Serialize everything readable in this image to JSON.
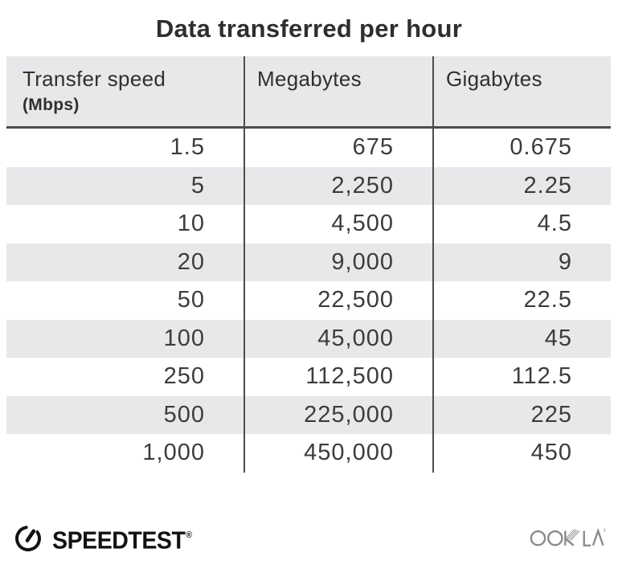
{
  "title": "Data transferred per hour",
  "table": {
    "headers": {
      "col1_line1": "Transfer speed",
      "col1_line2": "(Mbps)",
      "col2": "Megabytes",
      "col3": "Gigabytes"
    },
    "rows": [
      [
        "1.5",
        "675",
        "0.675"
      ],
      [
        "5",
        "2,250",
        "2.25"
      ],
      [
        "10",
        "4,500",
        "4.5"
      ],
      [
        "20",
        "9,000",
        "9"
      ],
      [
        "50",
        "22,500",
        "22.5"
      ],
      [
        "100",
        "45,000",
        "45"
      ],
      [
        "250",
        "112,500",
        "112.5"
      ],
      [
        "500",
        "225,000",
        "225"
      ],
      [
        "1,000",
        "450,000",
        "450"
      ]
    ]
  },
  "chart_data": {
    "type": "table",
    "title": "Data transferred per hour",
    "columns": [
      "Transfer speed (Mbps)",
      "Megabytes",
      "Gigabytes"
    ],
    "rows": [
      [
        1.5,
        675,
        0.675
      ],
      [
        5,
        2250,
        2.25
      ],
      [
        10,
        4500,
        4.5
      ],
      [
        20,
        9000,
        9
      ],
      [
        50,
        22500,
        22.5
      ],
      [
        100,
        45000,
        45
      ],
      [
        250,
        112500,
        112.5
      ],
      [
        500,
        225000,
        225
      ],
      [
        1000,
        450000,
        450
      ]
    ],
    "layout": {
      "striped_rows": true,
      "value_alignment": "right",
      "header_background": true
    }
  },
  "footer": {
    "speedtest_label": "SPEEDTEST",
    "speedtest_mark": "®",
    "ookla_label": "OOKLA"
  },
  "colors": {
    "ink": "#2e2e2e",
    "body_text": "#3c3c3c",
    "header_bg": "#e8e8eb",
    "stripe": "#e8e8eb",
    "divider": "#4d4d4d",
    "speedtest_black": "#121212",
    "ookla_gray": "#8b8b8b"
  }
}
